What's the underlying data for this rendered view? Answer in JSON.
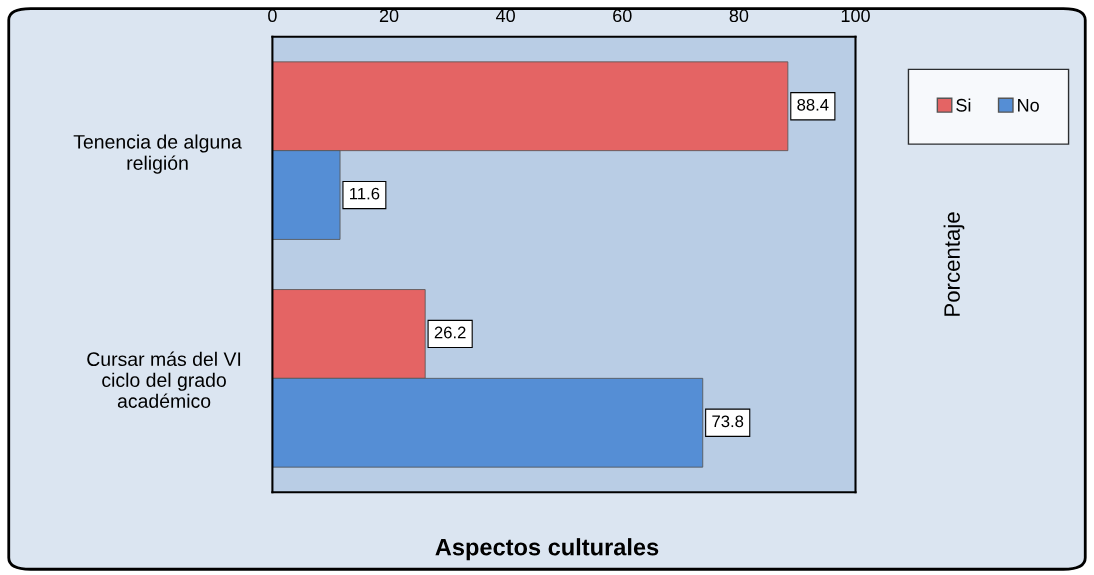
{
  "chart_data": {
    "type": "bar",
    "orientation": "horizontal",
    "xlabel": "Aspectos culturales",
    "ylabel": "Porcentaje",
    "categories": [
      "Tenencia de alguna\nreligión",
      "Cursar más del VI\nciclo del grado\nacadémico"
    ],
    "series": [
      {
        "name": "Si",
        "color": "#e46464",
        "values": [
          88.4,
          26.2
        ]
      },
      {
        "name": "No",
        "color": "#558ed5",
        "values": [
          11.6,
          73.8
        ]
      }
    ],
    "xlim": [
      0,
      100
    ],
    "xticks": [
      0,
      20,
      40,
      60,
      80,
      100
    ],
    "data_labels": true,
    "legend": "top right",
    "grid": false
  }
}
